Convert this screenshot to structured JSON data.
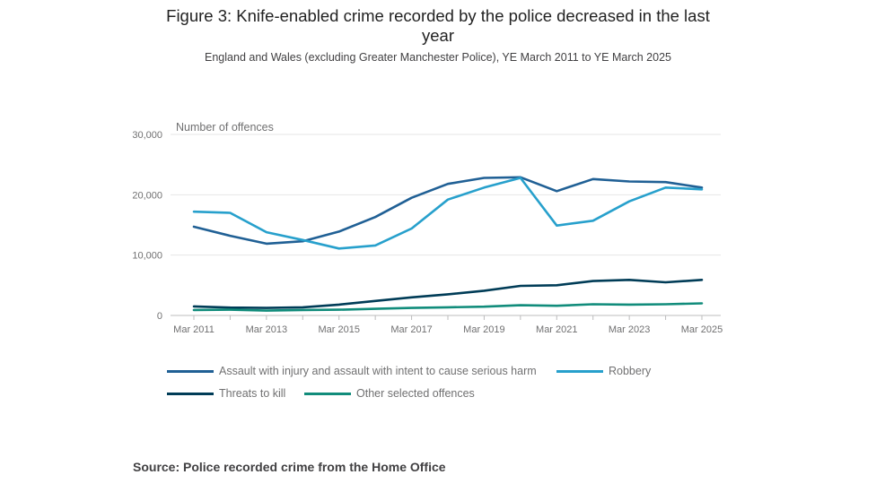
{
  "title": "Figure 3: Knife-enabled crime recorded by the police decreased in the last year",
  "subtitle": "England and Wales (excluding Greater Manchester Police), YE March 2011 to YE March 2025",
  "source": "Source: Police recorded crime from the Home Office",
  "chart_data": {
    "type": "line",
    "ylabel": "Number of offences",
    "xlabel": "",
    "ylim": [
      0,
      30000
    ],
    "yticks": [
      0,
      10000,
      20000,
      30000
    ],
    "ytick_labels": [
      "0",
      "10,000",
      "20,000",
      "30,000"
    ],
    "categories": [
      "Mar 2011",
      "Mar 2012",
      "Mar 2013",
      "Mar 2014",
      "Mar 2015",
      "Mar 2016",
      "Mar 2017",
      "Mar 2018",
      "Mar 2019",
      "Mar 2020",
      "Mar 2021",
      "Mar 2022",
      "Mar 2023",
      "Mar 2024",
      "Mar 2025"
    ],
    "xtick_labels": [
      "Mar 2011",
      "",
      "Mar 2013",
      "",
      "Mar 2015",
      "",
      "Mar 2017",
      "",
      "Mar 2019",
      "",
      "Mar 2021",
      "",
      "Mar 2023",
      "",
      "Mar 2025"
    ],
    "grid": true,
    "legend_position": "bottom",
    "series": [
      {
        "name": "Assault with injury and assault with intent to cause serious harm",
        "color": "#206095",
        "values": [
          14700,
          13200,
          11900,
          12300,
          13900,
          16300,
          19500,
          21800,
          22800,
          22900,
          20600,
          22600,
          22200,
          22100,
          21200
        ]
      },
      {
        "name": "Robbery",
        "color": "#27a0cc",
        "values": [
          17200,
          17000,
          13800,
          12500,
          11100,
          11600,
          14400,
          19200,
          21200,
          22800,
          14900,
          15700,
          18900,
          21200,
          20900
        ]
      },
      {
        "name": "Threats to kill",
        "color": "#003c57",
        "values": [
          1500,
          1300,
          1250,
          1350,
          1800,
          2400,
          3000,
          3500,
          4100,
          4900,
          5000,
          5700,
          5900,
          5500,
          5900
        ]
      },
      {
        "name": "Other selected offences",
        "color": "#118c7b",
        "values": [
          900,
          950,
          800,
          900,
          950,
          1100,
          1250,
          1350,
          1450,
          1700,
          1600,
          1850,
          1800,
          1850,
          2000
        ]
      }
    ]
  }
}
